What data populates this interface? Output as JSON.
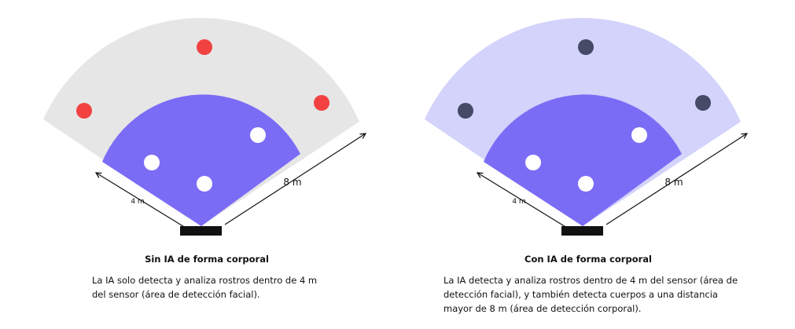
{
  "panels": [
    {
      "title": "Sin IA de forma corporal",
      "description": [
        "La IA solo detecta y analiza rostros dentro de 4 m",
        "del sensor (área de detección facial)."
      ],
      "near_label": "4 m",
      "far_label": "8 m"
    },
    {
      "title": "Con IA de forma corporal",
      "description": [
        "La IA detecta y analiza rostros dentro de 4 m del sensor (área de",
        "detección facial), y también detecta cuerpos a una distancia",
        "mayor de 8 m (área de detección corporal)."
      ],
      "near_label": "4 m",
      "far_label": "8 m"
    }
  ]
}
